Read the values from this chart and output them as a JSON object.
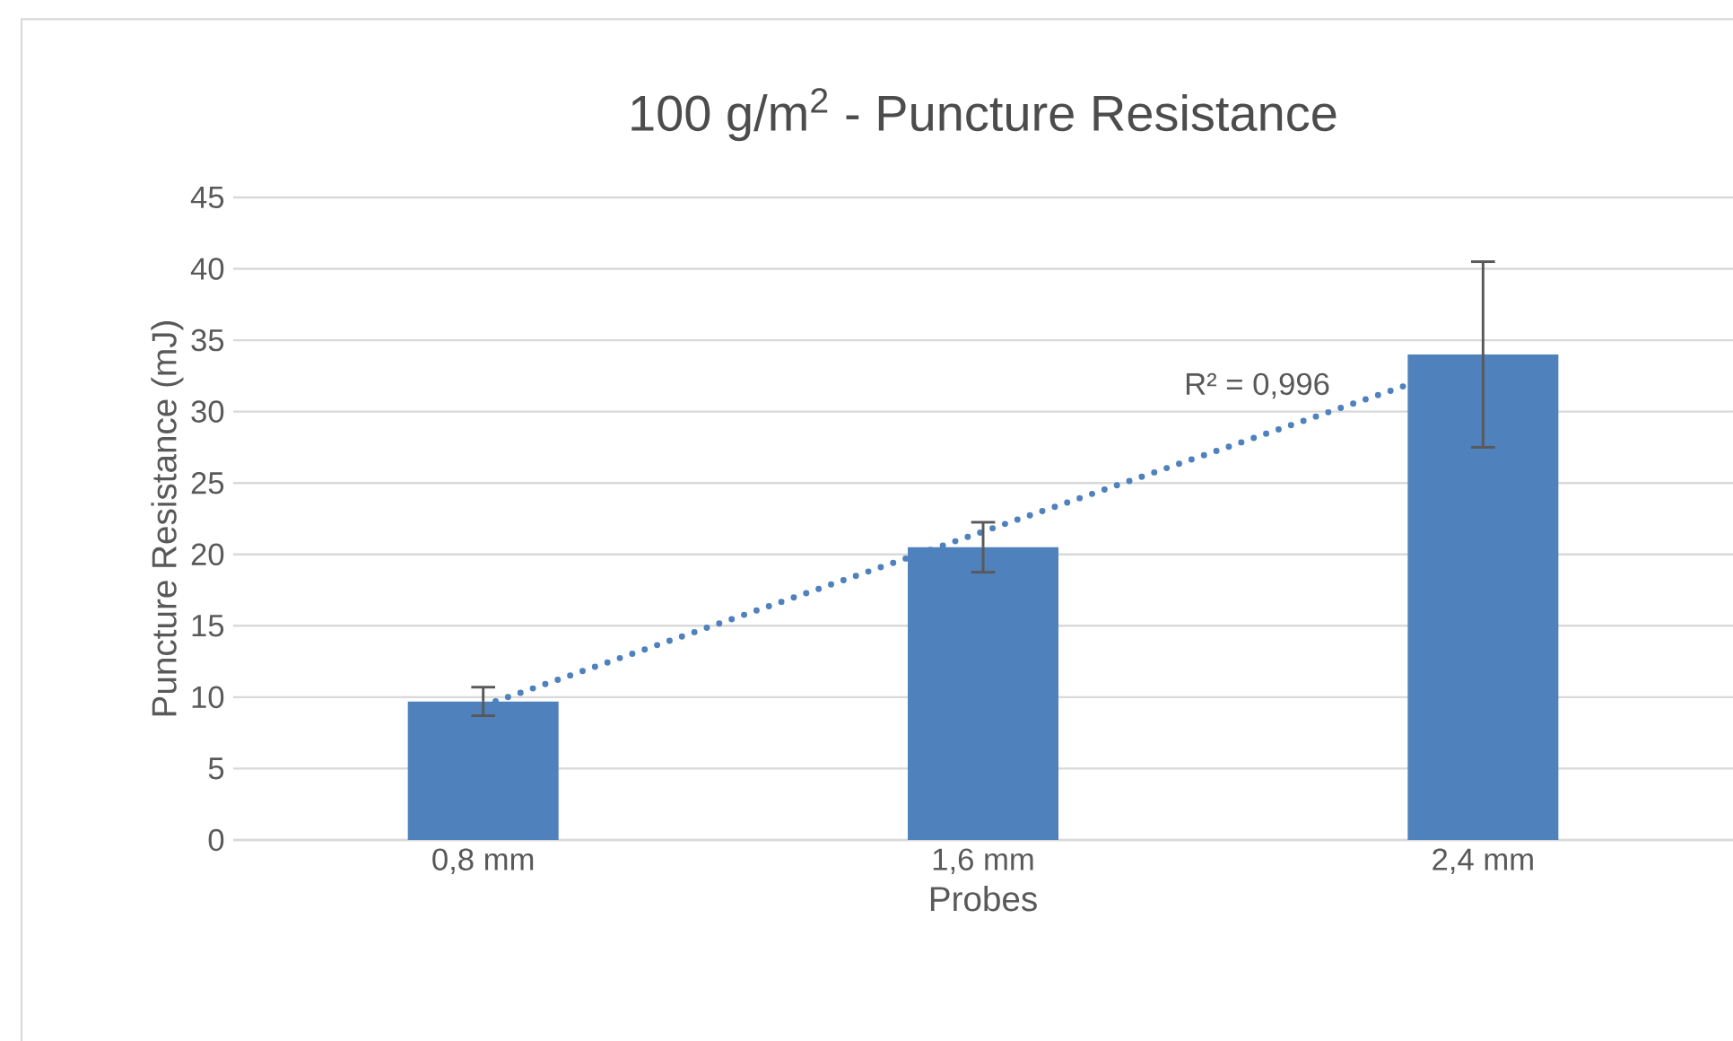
{
  "chart_data": {
    "type": "bar",
    "title": "100 g/m$^{2}$ - Puncture Resistance",
    "xlabel": "Probes",
    "ylabel": "Puncture Resistance (mJ)",
    "categories": [
      "0,8 mm",
      "1,6 mm",
      "2,4 mm"
    ],
    "series": [
      {
        "type": "line",
        "color": "#4f81bd",
        "values": [
          9.4,
          21.6,
          33.7
        ],
        "line_style": "dotted",
        "marker": "none"
      },
      {
        "color": "#4f81bd",
        "values": [
          9.7,
          20.5,
          34.0
        ],
        "errors": [
          1.0,
          1.75,
          6.5
        ]
      }
    ],
    "annotations": [
      "R² = 0,996"
    ],
    "ylim": [
      0,
      45
    ],
    "yticks": [
      0,
      5,
      10,
      15,
      20,
      25,
      30,
      35,
      40,
      45
    ],
    "grid": "y"
  }
}
